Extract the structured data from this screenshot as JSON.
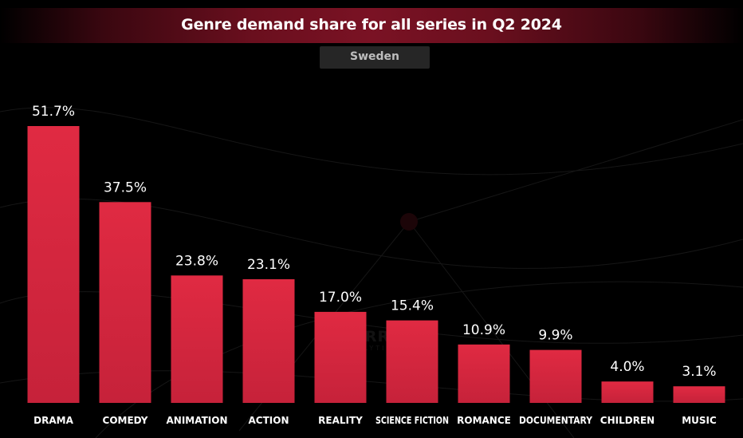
{
  "chart_data": {
    "type": "bar",
    "title": "Genre demand share for all series in Q2 2024",
    "subtitle": "Sweden",
    "categories": [
      "DRAMA",
      "COMEDY",
      "ANIMATION",
      "ACTION",
      "REALITY",
      "SCIENCE FICTION",
      "ROMANCE",
      "DOCUMENTARY",
      "CHILDREN",
      "MUSIC"
    ],
    "values": [
      51.7,
      37.5,
      23.8,
      23.1,
      17.0,
      15.4,
      10.9,
      9.9,
      4.0,
      3.1
    ],
    "data_labels": [
      "51.7%",
      "37.5%",
      "23.8%",
      "23.1%",
      "17.0%",
      "15.4%",
      "10.9%",
      "9.9%",
      "4.0%",
      "3.1%"
    ],
    "xlabel": "",
    "ylabel": "",
    "unit": "%",
    "ylim": [
      0,
      51.7
    ],
    "grid": false,
    "legend": "none"
  },
  "watermark": {
    "brand": "PARROT",
    "tagline": "ANALYTICS"
  },
  "colors": {
    "background": "#000000",
    "bar": "#d3263c",
    "bar_highlight": "#e02a42",
    "title_band": "#7a1224",
    "subtitle_box": "#262626",
    "value_label": "#ffffff",
    "category_label": "#ffffff"
  }
}
